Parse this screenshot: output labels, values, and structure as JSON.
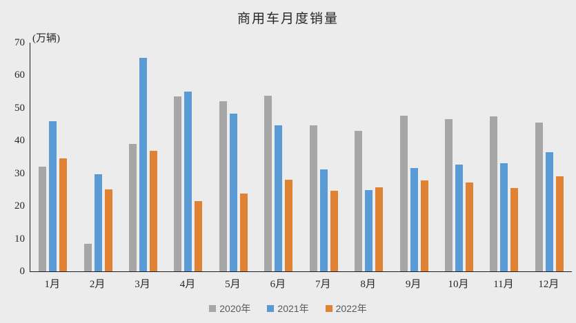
{
  "title": "商用车月度销量",
  "unit_label": "(万辆)",
  "background_color": "#ECECEC",
  "axis_color": "#1a1a1a",
  "text_color": "#262626",
  "legend_text_color": "#595959",
  "chart_data": {
    "type": "bar",
    "title": "商用车月度销量",
    "ylabel": "(万辆)",
    "categories": [
      "1月",
      "2月",
      "3月",
      "4月",
      "5月",
      "6月",
      "7月",
      "8月",
      "9月",
      "10月",
      "11月",
      "12月"
    ],
    "series": [
      {
        "name": "2020年",
        "color": "#A6A6A6",
        "values": [
          32.0,
          8.5,
          39.0,
          53.5,
          52.0,
          53.7,
          44.8,
          43.1,
          47.7,
          46.5,
          47.4,
          45.6
        ]
      },
      {
        "name": "2021年",
        "color": "#5B9BD5",
        "values": [
          45.9,
          29.8,
          65.4,
          55.0,
          48.2,
          44.7,
          31.3,
          24.9,
          31.7,
          32.6,
          33.1,
          36.5
        ]
      },
      {
        "name": "2022年",
        "color": "#E08234",
        "values": [
          34.5,
          25.0,
          37.0,
          21.6,
          23.8,
          28.1,
          24.6,
          25.7,
          27.9,
          27.3,
          25.5,
          29.2
        ]
      }
    ],
    "ylim": [
      0,
      70
    ],
    "yticks": [
      0,
      10,
      20,
      30,
      40,
      50,
      60,
      70
    ],
    "grid": false,
    "legend_position": "bottom"
  }
}
